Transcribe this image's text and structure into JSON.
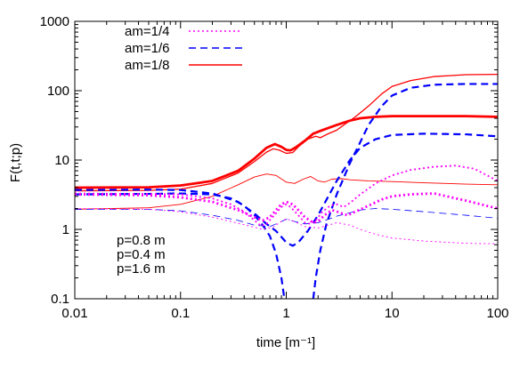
{
  "chart_data": {
    "type": "line",
    "xlabel": "time [m⁻¹]",
    "ylabel": "F(t,t;p)",
    "x_scale": "log",
    "y_scale": "log",
    "xlim": [
      0.01,
      100
    ],
    "ylim": [
      0.1,
      1000
    ],
    "x_ticks": [
      {
        "value": 0.01,
        "label": "0.01"
      },
      {
        "value": 0.1,
        "label": "0.1"
      },
      {
        "value": 1,
        "label": "1"
      },
      {
        "value": 10,
        "label": "10"
      },
      {
        "value": 100,
        "label": "100"
      }
    ],
    "y_ticks": [
      {
        "value": 0.1,
        "label": "0.1"
      },
      {
        "value": 1,
        "label": "1"
      },
      {
        "value": 10,
        "label": "10"
      },
      {
        "value": 100,
        "label": "100"
      },
      {
        "value": 1000,
        "label": "1000"
      }
    ],
    "grid": false,
    "legend_position": "top-left",
    "legend": [
      {
        "label": "am=1/4",
        "color": "#ff00ff",
        "dash": "dotted"
      },
      {
        "label": "am=1/6",
        "color": "#0000ff",
        "dash": "dashed"
      },
      {
        "label": "am=1/8",
        "color": "#ff0000",
        "dash": "solid"
      }
    ],
    "annotations": [
      "p=0.8 m",
      "p=0.4 m",
      "p=1.6 m"
    ],
    "series": [
      {
        "group": "am=1/8",
        "color": "#ff0000",
        "style": "solid",
        "width": 2.8,
        "points": [
          [
            0.01,
            4.0
          ],
          [
            0.05,
            4.05
          ],
          [
            0.1,
            4.3
          ],
          [
            0.2,
            5.0
          ],
          [
            0.35,
            7.0
          ],
          [
            0.5,
            10.5
          ],
          [
            0.65,
            15
          ],
          [
            0.78,
            17
          ],
          [
            0.9,
            15.5
          ],
          [
            1.0,
            14
          ],
          [
            1.1,
            13.8
          ],
          [
            1.25,
            15.5
          ],
          [
            1.5,
            19
          ],
          [
            1.8,
            24
          ],
          [
            2.2,
            27
          ],
          [
            2.5,
            29
          ],
          [
            3,
            32
          ],
          [
            4,
            37
          ],
          [
            5,
            40
          ],
          [
            7,
            42
          ],
          [
            10,
            43
          ],
          [
            20,
            43
          ],
          [
            50,
            43
          ],
          [
            100,
            42
          ]
        ]
      },
      {
        "group": "am=1/8",
        "color": "#ff0000",
        "style": "solid",
        "width": 1.3,
        "points": [
          [
            0.01,
            3.6
          ],
          [
            0.05,
            3.65
          ],
          [
            0.1,
            3.8
          ],
          [
            0.2,
            4.6
          ],
          [
            0.35,
            6.5
          ],
          [
            0.5,
            9.5
          ],
          [
            0.65,
            13
          ],
          [
            0.75,
            14.5
          ],
          [
            0.85,
            14
          ],
          [
            1.0,
            12.5
          ],
          [
            1.15,
            12.8
          ],
          [
            1.3,
            15.5
          ],
          [
            1.6,
            20
          ],
          [
            1.9,
            22
          ],
          [
            2.1,
            21
          ],
          [
            2.5,
            24
          ],
          [
            3,
            27
          ],
          [
            3.5,
            32
          ],
          [
            4.5,
            42
          ],
          [
            6,
            60
          ],
          [
            8,
            90
          ],
          [
            10,
            115
          ],
          [
            15,
            140
          ],
          [
            25,
            160
          ],
          [
            50,
            170
          ],
          [
            100,
            172
          ]
        ]
      },
      {
        "group": "am=1/8",
        "color": "#ff0000",
        "style": "solid",
        "width": 0.9,
        "points": [
          [
            0.01,
            1.95
          ],
          [
            0.05,
            2.05
          ],
          [
            0.1,
            2.3
          ],
          [
            0.2,
            3.0
          ],
          [
            0.35,
            4.4
          ],
          [
            0.5,
            5.7
          ],
          [
            0.65,
            6.3
          ],
          [
            0.8,
            6.0
          ],
          [
            1.0,
            4.8
          ],
          [
            1.2,
            4.6
          ],
          [
            1.45,
            5.3
          ],
          [
            1.7,
            5.8
          ],
          [
            2.0,
            5.0
          ],
          [
            2.3,
            4.8
          ],
          [
            2.7,
            5.3
          ],
          [
            3.3,
            5.4
          ],
          [
            4,
            5.2
          ],
          [
            6,
            5.0
          ],
          [
            10,
            4.9
          ],
          [
            20,
            4.7
          ],
          [
            50,
            4.5
          ],
          [
            100,
            4.4
          ]
        ]
      },
      {
        "group": "am=1/6",
        "color": "#0000ff",
        "style": "dashed",
        "width": 2.2,
        "points": [
          [
            0.01,
            3.2
          ],
          [
            0.05,
            3.25
          ],
          [
            0.1,
            3.3
          ],
          [
            0.2,
            3.2
          ],
          [
            0.3,
            2.8
          ],
          [
            0.4,
            2.2
          ],
          [
            0.5,
            1.6
          ],
          [
            0.6,
            1.15
          ],
          [
            0.7,
            0.8
          ],
          [
            0.8,
            0.45
          ],
          [
            0.9,
            0.2
          ],
          [
            0.96,
            0.1
          ]
        ]
      },
      {
        "group": "am=1/6",
        "color": "#0000ff",
        "style": "dashed",
        "width": 2.2,
        "points": [
          [
            1.8,
            0.1
          ],
          [
            1.9,
            0.2
          ],
          [
            2.1,
            0.5
          ],
          [
            2.4,
            1.2
          ],
          [
            3,
            3.2
          ],
          [
            4,
            9
          ],
          [
            5,
            18
          ],
          [
            6,
            32
          ],
          [
            8,
            60
          ],
          [
            10,
            85
          ],
          [
            15,
            110
          ],
          [
            25,
            122
          ],
          [
            50,
            125
          ],
          [
            100,
            125
          ]
        ]
      },
      {
        "group": "am=1/6",
        "color": "#0000ff",
        "style": "dashed",
        "width": 2.2,
        "points": [
          [
            0.01,
            3.7
          ],
          [
            0.05,
            3.75
          ],
          [
            0.1,
            3.7
          ],
          [
            0.2,
            3.3
          ],
          [
            0.35,
            2.5
          ],
          [
            0.5,
            1.7
          ],
          [
            0.65,
            1.2
          ],
          [
            0.8,
            0.95
          ],
          [
            1.0,
            0.65
          ],
          [
            1.15,
            0.58
          ],
          [
            1.3,
            0.65
          ],
          [
            1.6,
            0.95
          ],
          [
            2,
            1.6
          ],
          [
            2.5,
            3
          ],
          [
            3,
            5
          ],
          [
            4,
            10
          ],
          [
            5,
            15
          ],
          [
            7,
            20
          ],
          [
            10,
            23
          ],
          [
            20,
            24
          ],
          [
            50,
            23.5
          ],
          [
            100,
            22
          ]
        ]
      },
      {
        "group": "am=1/6",
        "color": "#0000ff",
        "style": "dashed",
        "width": 0.8,
        "points": [
          [
            0.01,
            1.95
          ],
          [
            0.05,
            1.95
          ],
          [
            0.1,
            1.85
          ],
          [
            0.2,
            1.6
          ],
          [
            0.35,
            1.35
          ],
          [
            0.5,
            1.15
          ],
          [
            0.7,
            1.1
          ],
          [
            0.85,
            1.25
          ],
          [
            1.0,
            1.4
          ],
          [
            1.2,
            1.3
          ],
          [
            1.5,
            1.2
          ],
          [
            2,
            1.25
          ],
          [
            2.5,
            1.4
          ],
          [
            3,
            1.55
          ],
          [
            5,
            1.9
          ],
          [
            7,
            2.0
          ],
          [
            10,
            1.95
          ],
          [
            20,
            1.8
          ],
          [
            50,
            1.6
          ],
          [
            100,
            1.45
          ]
        ]
      },
      {
        "group": "am=1/4",
        "color": "#ff00ff",
        "style": "dotted",
        "width": 2.8,
        "points": [
          [
            0.01,
            3.2
          ],
          [
            0.05,
            3.1
          ],
          [
            0.1,
            2.9
          ],
          [
            0.2,
            2.5
          ],
          [
            0.35,
            1.9
          ],
          [
            0.5,
            1.5
          ],
          [
            0.6,
            1.35
          ],
          [
            0.7,
            1.5
          ],
          [
            0.8,
            1.9
          ],
          [
            0.9,
            2.3
          ],
          [
            1.0,
            2.5
          ],
          [
            1.15,
            2.3
          ],
          [
            1.3,
            1.9
          ],
          [
            1.5,
            1.5
          ],
          [
            1.8,
            1.25
          ],
          [
            2.0,
            1.3
          ],
          [
            2.3,
            1.6
          ],
          [
            2.7,
            1.9
          ],
          [
            3.2,
            1.75
          ],
          [
            3.8,
            1.6
          ],
          [
            4.5,
            1.8
          ],
          [
            6,
            2.2
          ],
          [
            8,
            2.7
          ],
          [
            10,
            3.0
          ],
          [
            15,
            3.2
          ],
          [
            25,
            3.3
          ],
          [
            50,
            2.6
          ],
          [
            100,
            2.0
          ]
        ]
      },
      {
        "group": "am=1/4",
        "color": "#ff00ff",
        "style": "dotted",
        "width": 1.8,
        "points": [
          [
            0.01,
            3.3
          ],
          [
            0.05,
            3.25
          ],
          [
            0.1,
            3.2
          ],
          [
            0.2,
            2.8
          ],
          [
            0.3,
            2.3
          ],
          [
            0.4,
            1.8
          ],
          [
            0.5,
            1.35
          ],
          [
            0.58,
            1.12
          ],
          [
            0.65,
            1.2
          ],
          [
            0.8,
            1.7
          ],
          [
            0.9,
            2.1
          ],
          [
            1.0,
            2.3
          ],
          [
            1.1,
            2.1
          ],
          [
            1.3,
            1.6
          ],
          [
            1.5,
            1.25
          ],
          [
            1.7,
            1.2
          ],
          [
            1.9,
            1.35
          ],
          [
            2.2,
            1.8
          ],
          [
            2.6,
            2.2
          ],
          [
            3,
            2.3
          ],
          [
            3.5,
            2.1
          ],
          [
            4,
            2.4
          ],
          [
            5,
            3.2
          ],
          [
            7,
            4.6
          ],
          [
            10,
            6.0
          ],
          [
            15,
            7.2
          ],
          [
            25,
            8.0
          ],
          [
            40,
            8.3
          ],
          [
            60,
            7.5
          ],
          [
            100,
            5.0
          ]
        ]
      },
      {
        "group": "am=1/4",
        "color": "#ff00ff",
        "style": "dotted",
        "width": 0.9,
        "points": [
          [
            0.01,
            2.0
          ],
          [
            0.05,
            1.95
          ],
          [
            0.1,
            1.8
          ],
          [
            0.2,
            1.5
          ],
          [
            0.3,
            1.3
          ],
          [
            0.45,
            1.12
          ],
          [
            0.6,
            1.0
          ],
          [
            0.75,
            1.08
          ],
          [
            0.9,
            1.3
          ],
          [
            1.0,
            1.42
          ],
          [
            1.2,
            1.3
          ],
          [
            1.5,
            1.1
          ],
          [
            2.0,
            1.05
          ],
          [
            2.5,
            1.15
          ],
          [
            3,
            1.25
          ],
          [
            4,
            1.15
          ],
          [
            5,
            1.0
          ],
          [
            7,
            0.85
          ],
          [
            10,
            0.75
          ],
          [
            20,
            0.68
          ],
          [
            50,
            0.63
          ],
          [
            100,
            0.62
          ]
        ]
      }
    ]
  }
}
